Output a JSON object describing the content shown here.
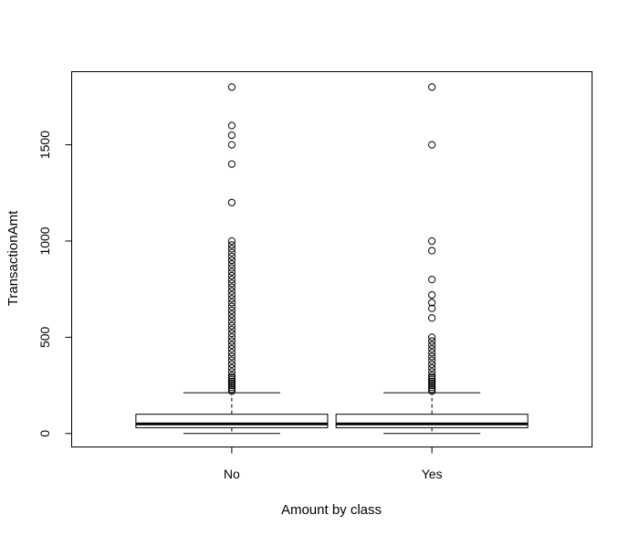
{
  "chart_data": {
    "type": "box",
    "title": "",
    "xlabel": "Amount by class",
    "ylabel": "TransactionAmt",
    "categories": [
      "No",
      "Yes"
    ],
    "ylim": [
      -70,
      1880
    ],
    "yticks": [
      0,
      500,
      1000,
      1500
    ],
    "grid": false,
    "boxes": [
      {
        "name": "No",
        "whisker_low": 0,
        "q1": 30,
        "median": 50,
        "q3": 100,
        "whisker_high": 212,
        "outliers": [
          1800,
          1600,
          1550,
          1500,
          1400,
          1200,
          1000,
          980,
          960,
          940,
          920,
          900,
          880,
          860,
          840,
          820,
          800,
          780,
          760,
          740,
          720,
          700,
          680,
          660,
          640,
          620,
          600,
          580,
          560,
          540,
          520,
          500,
          480,
          460,
          440,
          420,
          400,
          380,
          360,
          340,
          320,
          300,
          290,
          280,
          270,
          260,
          250,
          240,
          230,
          220
        ]
      },
      {
        "name": "Yes",
        "whisker_low": 0,
        "q1": 30,
        "median": 50,
        "q3": 100,
        "whisker_high": 212,
        "outliers": [
          1800,
          1500,
          1000,
          950,
          800,
          720,
          680,
          650,
          600,
          500,
          480,
          460,
          440,
          420,
          400,
          380,
          360,
          340,
          320,
          300,
          290,
          280,
          270,
          260,
          250,
          240,
          230,
          220
        ]
      }
    ]
  }
}
